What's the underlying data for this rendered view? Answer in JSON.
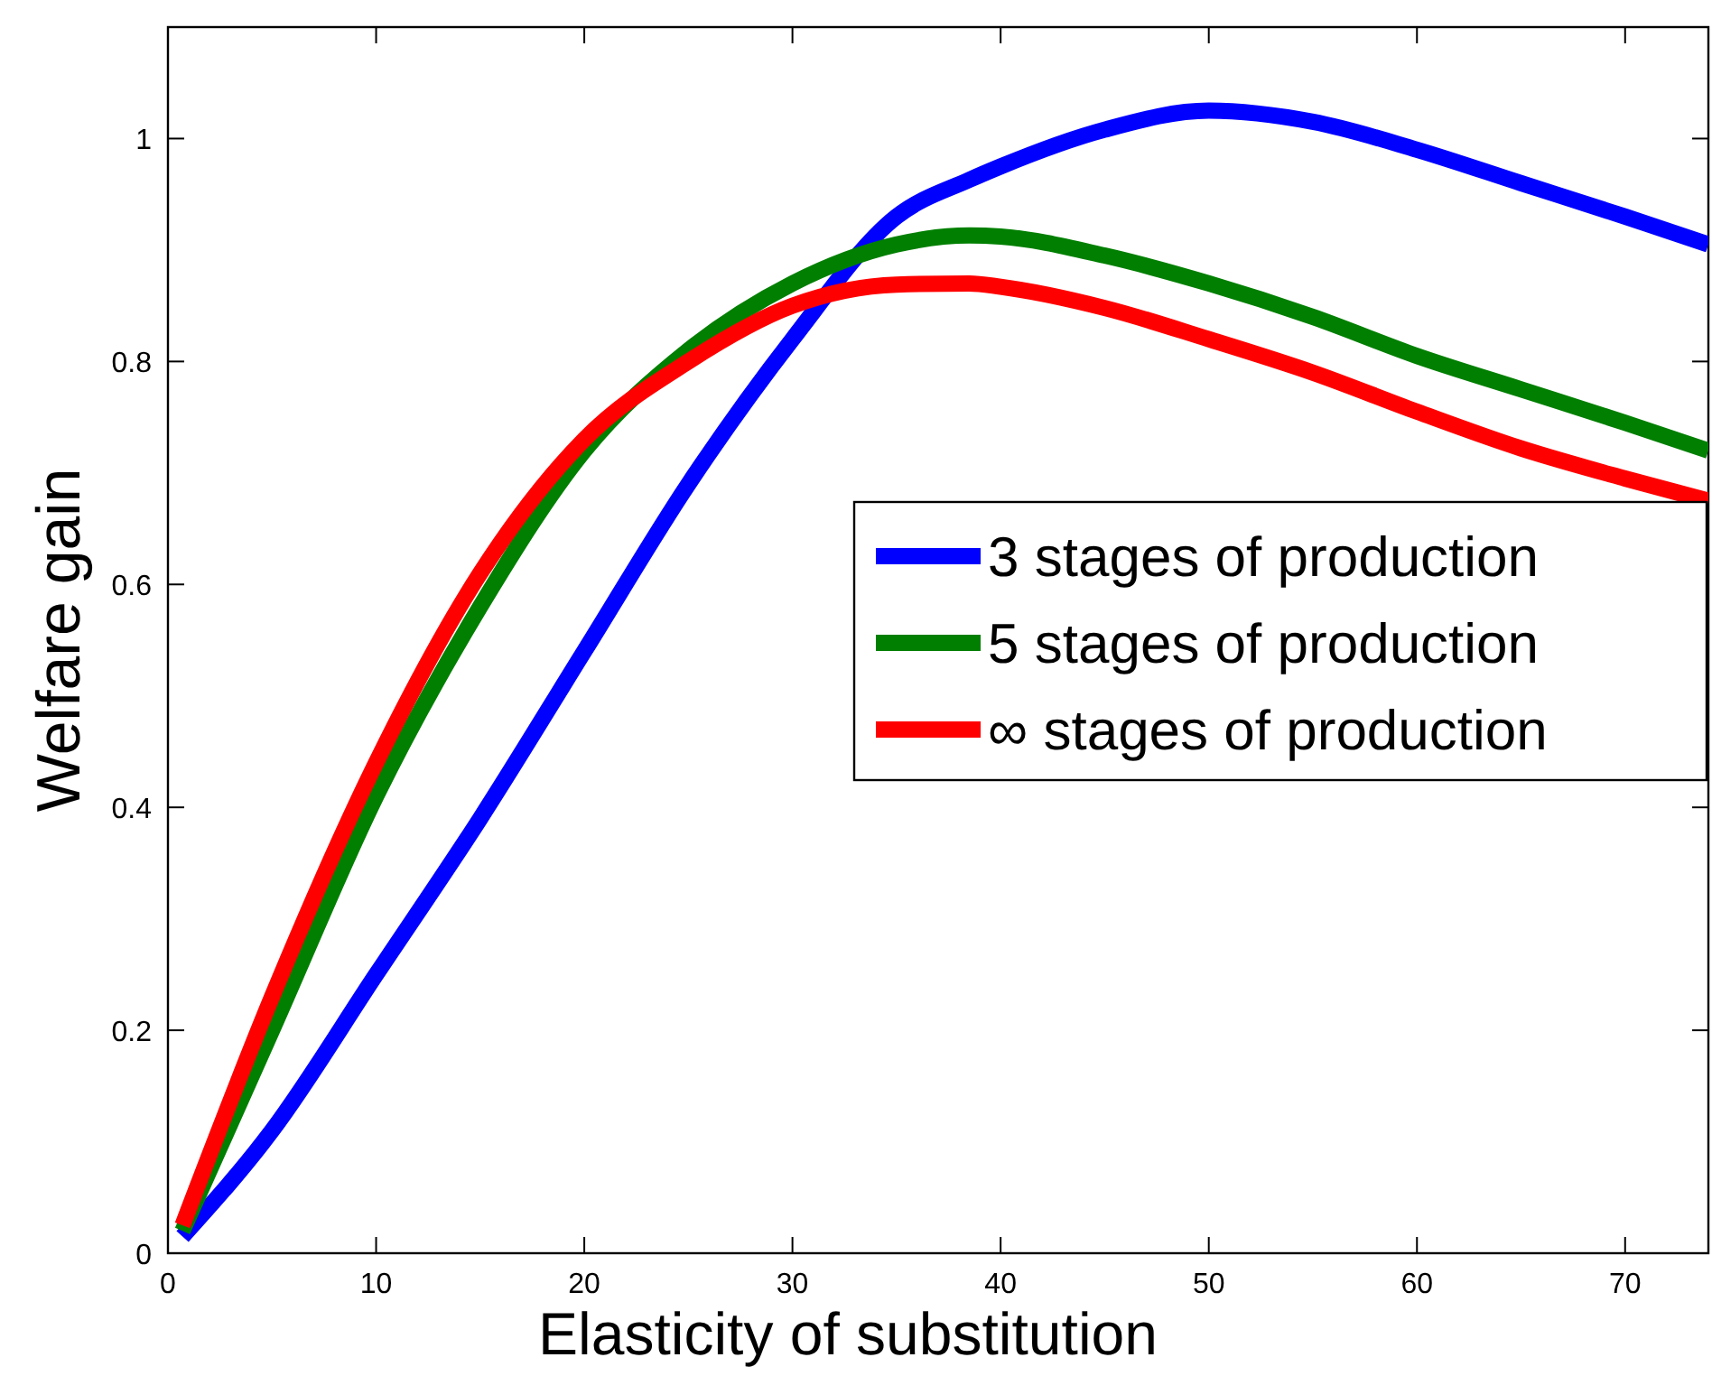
{
  "chart_data": {
    "type": "line",
    "xlabel": "Elasticity of substitution",
    "ylabel": "Welfare gain",
    "xlim": [
      0,
      74
    ],
    "ylim": [
      0,
      1.1
    ],
    "xticks": [
      0,
      10,
      20,
      30,
      40,
      50,
      60,
      70
    ],
    "yticks": [
      0,
      0.2,
      0.4,
      0.6,
      0.8,
      1
    ],
    "grid": false,
    "legend": "right",
    "line_style": "solid",
    "marker": "none",
    "x": [
      0.7,
      5,
      10,
      15,
      20,
      25,
      30,
      35,
      38.5,
      40,
      45,
      50,
      55,
      60,
      65,
      70,
      74
    ],
    "series": [
      {
        "name": "3 stages of production",
        "color": "#0000ff",
        "values": [
          0.015,
          0.11,
          0.25,
          0.39,
          0.54,
          0.69,
          0.82,
          0.93,
          0.963,
          0.975,
          1.008,
          1.025,
          1.015,
          0.99,
          0.96,
          0.93,
          0.905
        ]
      },
      {
        "name": "5 stages of production",
        "color": "#007f00",
        "values": [
          0.02,
          0.2,
          0.41,
          0.58,
          0.72,
          0.81,
          0.87,
          0.905,
          0.913,
          0.912,
          0.895,
          0.87,
          0.84,
          0.805,
          0.775,
          0.745,
          0.72
        ]
      },
      {
        "name": "∞ stages of production",
        "color": "#ff0000",
        "values": [
          0.025,
          0.23,
          0.44,
          0.61,
          0.73,
          0.8,
          0.85,
          0.869,
          0.87,
          0.867,
          0.848,
          0.82,
          0.79,
          0.755,
          0.722,
          0.695,
          0.675
        ]
      }
    ]
  }
}
